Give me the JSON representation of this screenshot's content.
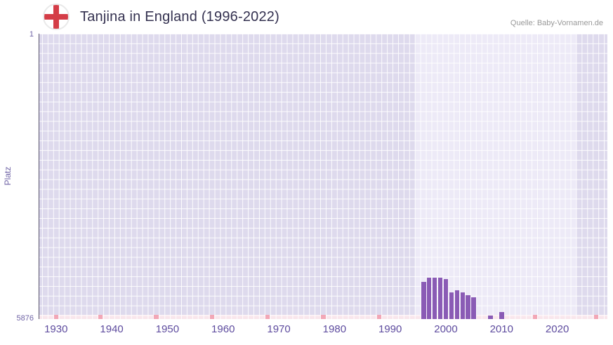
{
  "header": {
    "title": "Tanjina in England (1996-2022)",
    "source": "Quelle: Baby-Vornamen.de",
    "flag_icon": "england-flag"
  },
  "y_axis": {
    "label": "Platz",
    "top_tick": "1",
    "bottom_tick": "5876"
  },
  "chart_data": {
    "type": "bar",
    "title": "Tanjina in England (1996-2022)",
    "xlabel": "",
    "ylabel": "Platz",
    "y_inverted": true,
    "ylim": [
      1,
      5876
    ],
    "grid_y_step": 200,
    "x_range": [
      1927,
      2029
    ],
    "x_ticks": [
      1930,
      1940,
      1950,
      1960,
      1970,
      1980,
      1990,
      2000,
      2010,
      2020
    ],
    "highlight_range": [
      1994.5,
      2023.5
    ],
    "legend": "none",
    "grid": true,
    "years": [
      1996,
      1997,
      1998,
      1999,
      2000,
      2001,
      2002,
      2003,
      2004,
      2005,
      2008,
      2010
    ],
    "ranks": [
      5110,
      5030,
      5020,
      5030,
      5050,
      5330,
      5280,
      5330,
      5390,
      5430,
      5800,
      5730
    ],
    "no_data_marker_years": [
      1930,
      1938,
      1948,
      1958,
      1968,
      1978,
      1988,
      2016,
      2027
    ]
  },
  "colors": {
    "bar": "#8a5bb5",
    "marker": "#f2a7b6",
    "band": "#f9e6ec",
    "plotDark": "#dedaed",
    "plotLight": "#edeaf7",
    "axis": "#54506a",
    "axis_text": "#7064a6",
    "tick_label": "#5d4b9e",
    "title": "#33304f",
    "source": "#999999",
    "flag_red": "#d43d47"
  }
}
